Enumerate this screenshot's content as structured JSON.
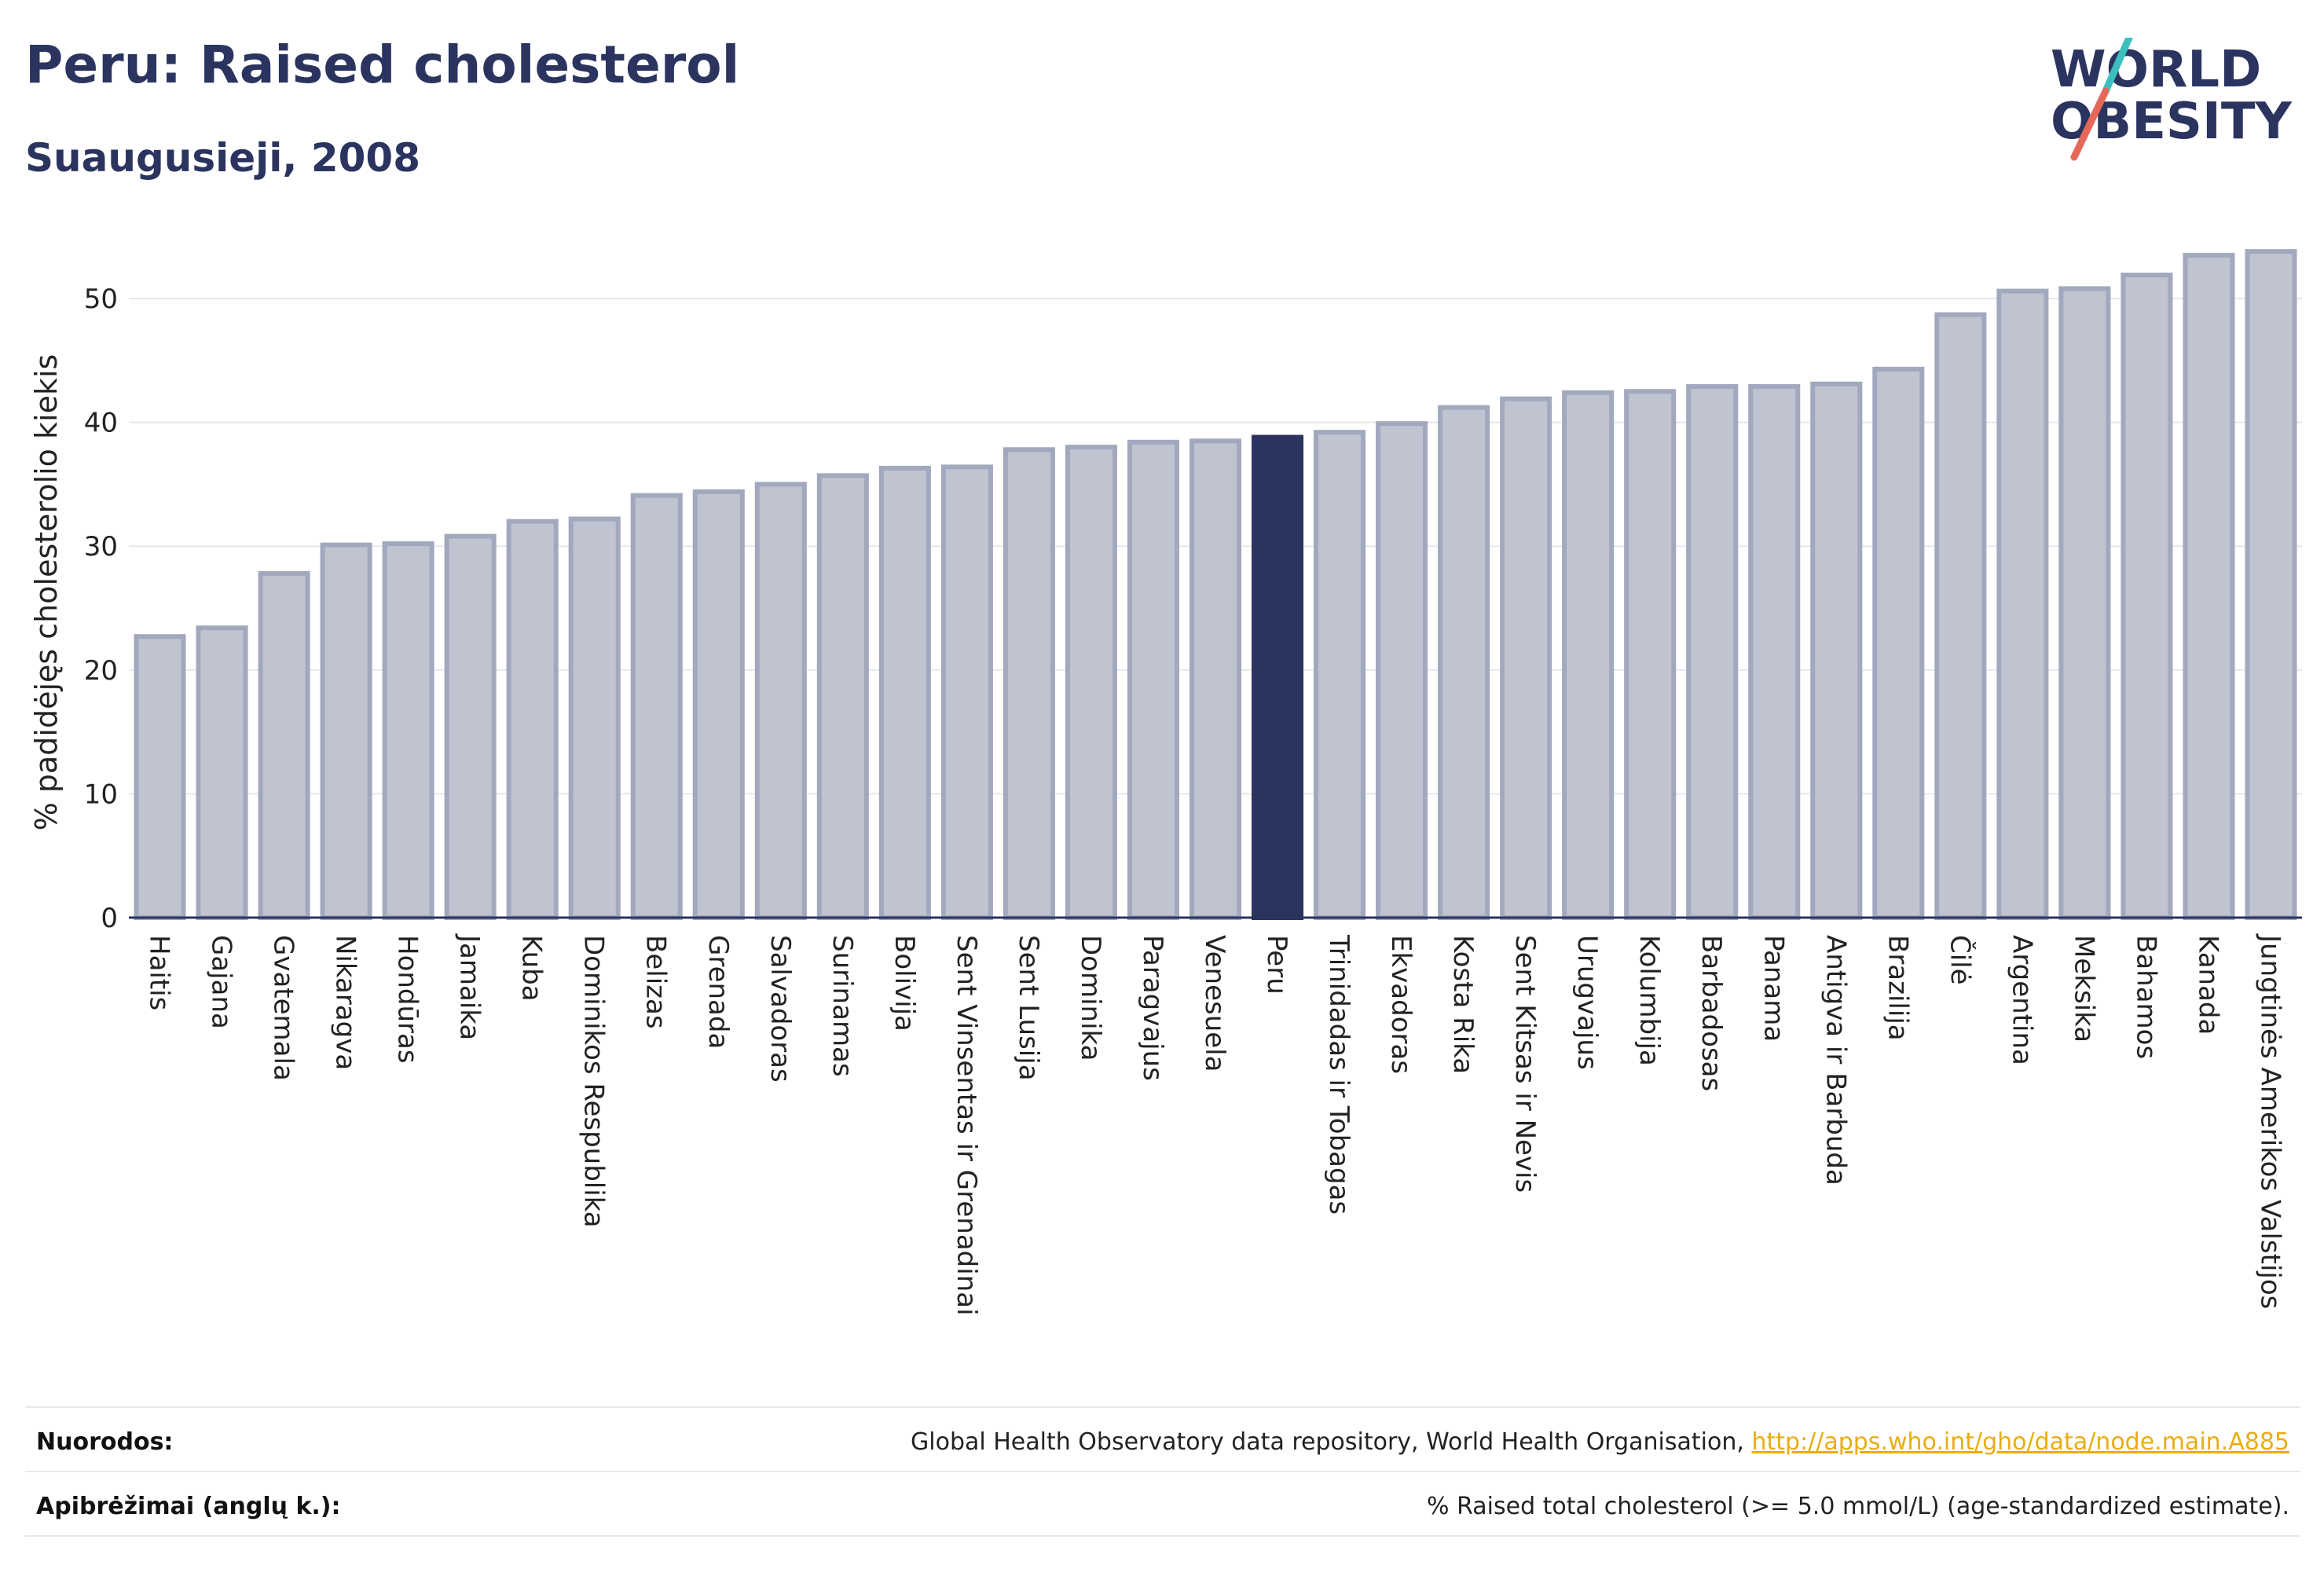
{
  "header": {
    "title": "Peru: Raised cholesterol",
    "subtitle": "Suaugusieji, 2008",
    "logo_line1": "WORLD",
    "logo_line2": "OBESITY"
  },
  "colors": {
    "highlight": "#2a345f",
    "bar_fill": "#c0c4d0",
    "bar_stroke": "#a2a8bd",
    "grid": "#e6e8ee",
    "text": "#2a345f",
    "link": "#e8ad12",
    "logo_slash_top": "#3bbfbf",
    "logo_slash_bottom": "#e5685a"
  },
  "chart_data": {
    "type": "bar",
    "title": "Peru: Raised cholesterol",
    "subtitle": "Suaugusieji, 2008",
    "ylabel": "% padidėjęs cholesterolio kiekis",
    "xlabel": "",
    "ylim": [
      0,
      55
    ],
    "yticks": [
      0,
      10,
      20,
      30,
      40,
      50
    ],
    "grid": true,
    "legend": "none",
    "highlight": "Peru",
    "categories": [
      "Haitis",
      "Gajana",
      "Gvatemala",
      "Nikaragva",
      "Hondūras",
      "Jamaika",
      "Kuba",
      "Dominikos Respublika",
      "Belizas",
      "Grenada",
      "Salvadoras",
      "Surinamas",
      "Bolivija",
      "Sent Vinsentas ir Grenadinai",
      "Sent Lusija",
      "Dominika",
      "Paragvajus",
      "Venesuela",
      "Peru",
      "Trinidadas ir Tobagas",
      "Ekvadoras",
      "Kosta Rika",
      "Sent Kitsas ir Nevis",
      "Urugvajus",
      "Kolumbija",
      "Barbadosas",
      "Panama",
      "Antigva ir Barbuda",
      "Brazilija",
      "Čilė",
      "Argentina",
      "Meksika",
      "Bahamos",
      "Kanada",
      "Jungtinės Amerikos Valstijos"
    ],
    "values": [
      22.7,
      23.4,
      27.8,
      30.1,
      30.2,
      30.8,
      32.0,
      32.2,
      34.1,
      34.4,
      35.0,
      35.7,
      36.3,
      36.4,
      37.8,
      38.0,
      38.4,
      38.5,
      38.8,
      39.2,
      39.9,
      41.2,
      41.9,
      42.4,
      42.5,
      42.9,
      42.9,
      43.1,
      44.3,
      48.7,
      50.6,
      50.8,
      51.9,
      53.5,
      53.8
    ]
  },
  "footer": {
    "sources_label": "Nuorodos:",
    "sources_text": "Global Health Observatory data repository, World Health Organisation, ",
    "sources_link": "http://apps.who.int/gho/data/node.main.A885",
    "definitions_label": "Apibrėžimai (anglų k.):",
    "definitions_text": "% Raised total cholesterol (>= 5.0 mmol/L) (age-standardized estimate)."
  }
}
